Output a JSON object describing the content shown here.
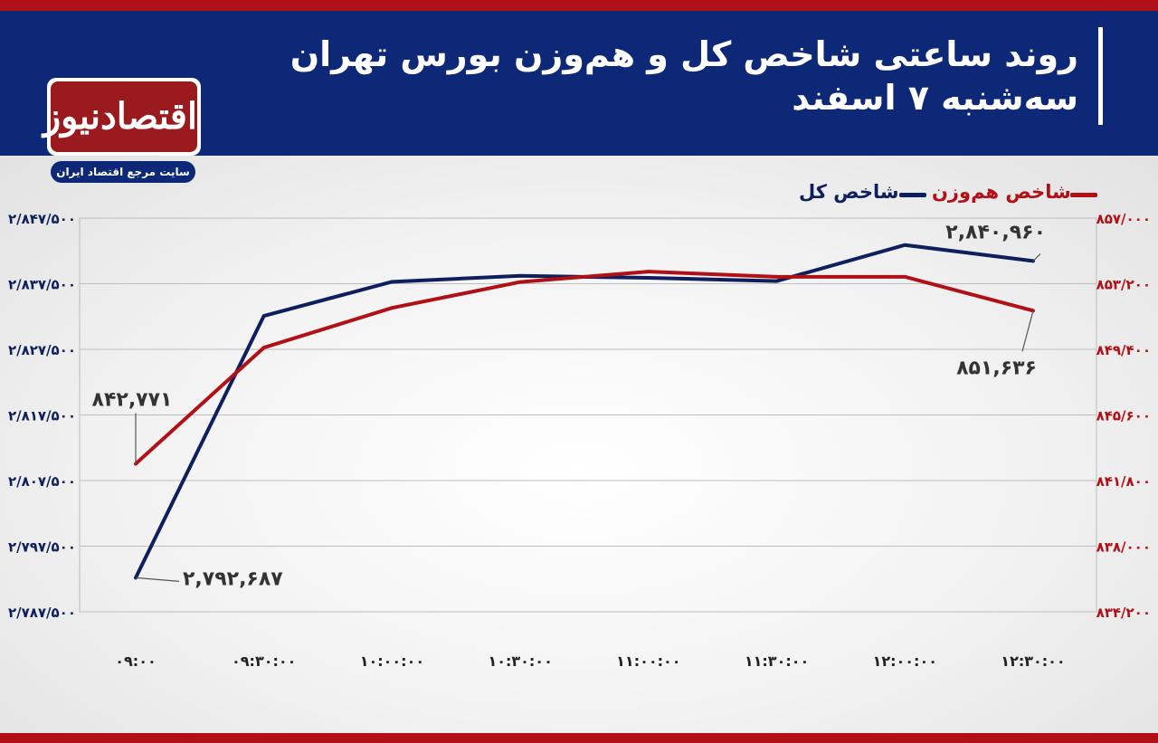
{
  "header": {
    "title_line1": "روند ساعتی شاخص کل و هم‌وزن بورس تهران",
    "title_line2": "سه‌شنبه ۷ اسفند"
  },
  "logo": {
    "wordmark": "اقتصادنیوز",
    "tagline": "سایت مرجع اقتصاد ایران"
  },
  "colors": {
    "header_bg": "#0d2877",
    "accent_red": "#b01016",
    "series_total": "#0d1f5c",
    "series_equal": "#b01016",
    "grid": "#bdbdbd"
  },
  "chart_data": {
    "type": "line",
    "title": "روند ساعتی شاخص کل و هم‌وزن بورس تهران",
    "subtitle": "سه‌شنبه ۷ اسفند",
    "x": [
      "۰۹:۰۰",
      "۰۹:۳۰:۰۰",
      "۱۰:۰۰:۰۰",
      "۱۰:۳۰:۰۰",
      "۱۱:۰۰:۰۰",
      "۱۱:۳۰:۰۰",
      "۱۲:۰۰:۰۰",
      "۱۲:۳۰:۰۰"
    ],
    "xlabel": "",
    "left_axis": {
      "ticks": [
        "۲/۸۴۷/۵۰۰",
        "۲/۸۳۷/۵۰۰",
        "۲/۸۲۷/۵۰۰",
        "۲/۸۱۷/۵۰۰",
        "۲/۸۰۷/۵۰۰",
        "۲/۷۹۷/۵۰۰",
        "۲/۷۸۷/۵۰۰"
      ],
      "ylim": [
        2787500,
        2847500
      ]
    },
    "right_axis": {
      "ticks": [
        "۸۵۷/۰۰۰",
        "۸۵۳/۲۰۰",
        "۸۴۹/۴۰۰",
        "۸۴۵/۶۰۰",
        "۸۴۱/۸۰۰",
        "۸۳۸/۰۰۰",
        "۸۳۴/۲۰۰"
      ],
      "ylim": [
        834200,
        857000
      ]
    },
    "series": [
      {
        "name": "شاخص کل",
        "axis": "left",
        "x_index": [
          0,
          1,
          2,
          3,
          4,
          5,
          6,
          7
        ],
        "values": [
          2792687,
          2832600,
          2837800,
          2838700,
          2838400,
          2837900,
          2843400,
          2840960
        ]
      },
      {
        "name": "شاخص هم‌وزن",
        "axis": "right",
        "x_index": [
          0,
          1,
          2,
          3,
          4,
          5,
          6,
          7
        ],
        "values": [
          842771,
          849500,
          851800,
          853300,
          853900,
          853600,
          853600,
          851636
        ]
      }
    ],
    "annotations": [
      {
        "series": 0,
        "point": 0,
        "text": "۲,۷۹۲,۶۸۷"
      },
      {
        "series": 0,
        "point": 7,
        "text": "۲,۸۴۰,۹۶۰"
      },
      {
        "series": 1,
        "point": 0,
        "text": "۸۴۲,۷۷۱"
      },
      {
        "series": 1,
        "point": 7,
        "text": "۸۵۱,۶۳۶"
      }
    ],
    "grid": true,
    "legend_position": "top-right"
  }
}
